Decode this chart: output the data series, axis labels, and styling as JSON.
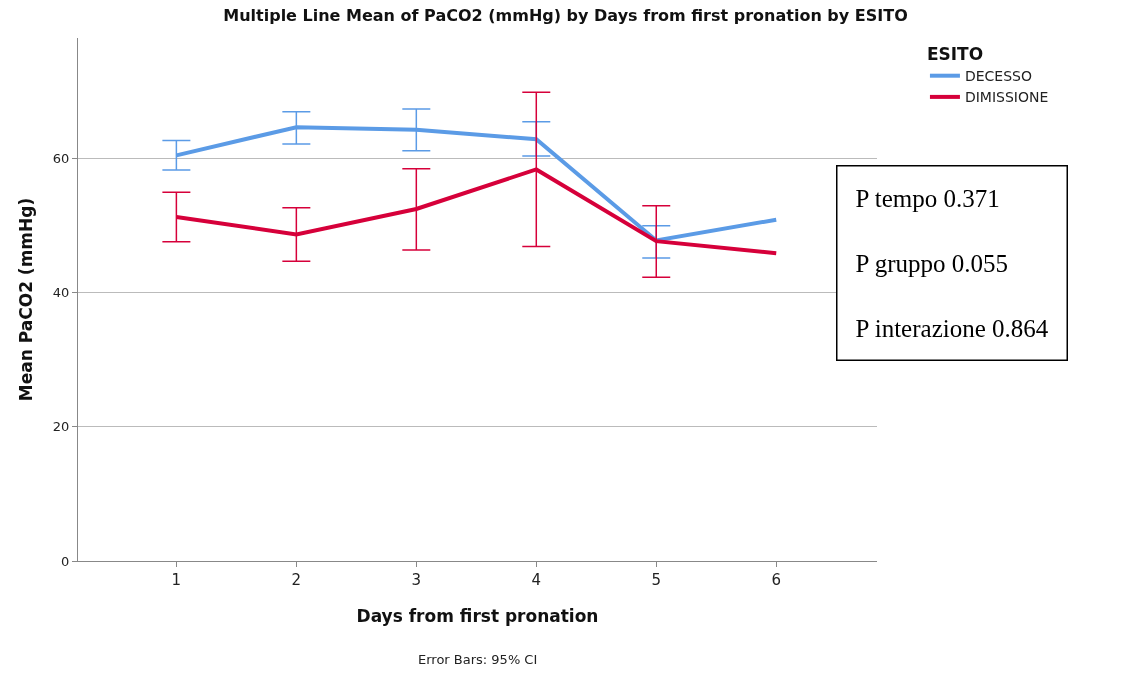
{
  "chart_data": {
    "type": "line",
    "title": "Multiple Line Mean of PaCO2 (mmHg) by Days from first pronation by ESITO",
    "xlabel": "Days from first pronation",
    "ylabel": "Mean PaCO2 (mmHg)",
    "legend_title": "ESITO",
    "categories": [
      "1",
      "2",
      "3",
      "4",
      "5",
      "6"
    ],
    "series": [
      {
        "name": "DECESSO",
        "color": "#5b9be6",
        "values": [
          60.5,
          64.7,
          64.3,
          62.9,
          47.8,
          50.9
        ],
        "errors": [
          [
            58.3,
            62.7
          ],
          [
            62.2,
            67.0
          ],
          [
            61.2,
            67.4
          ],
          [
            60.4,
            65.5
          ],
          [
            45.2,
            50.0
          ],
          null
        ]
      },
      {
        "name": "DIMISSIONE",
        "color": "#d6003a",
        "values": [
          51.3,
          48.7,
          52.5,
          58.4,
          47.7,
          45.9
        ],
        "errors": [
          [
            47.6,
            55.0
          ],
          [
            44.7,
            52.7
          ],
          [
            46.4,
            58.5
          ],
          [
            46.9,
            69.9
          ],
          [
            42.3,
            53.0
          ],
          null
        ]
      }
    ],
    "ylim": [
      0,
      78
    ],
    "yticks": [
      0,
      20,
      40,
      60
    ],
    "grid": "y",
    "legend": "top right",
    "marker": "none",
    "line_style": "solid",
    "annotations": [
      "Error Bars: 95% CI",
      "P tempo 0.371",
      "P gruppo 0.055",
      "P interazione 0.864"
    ]
  }
}
